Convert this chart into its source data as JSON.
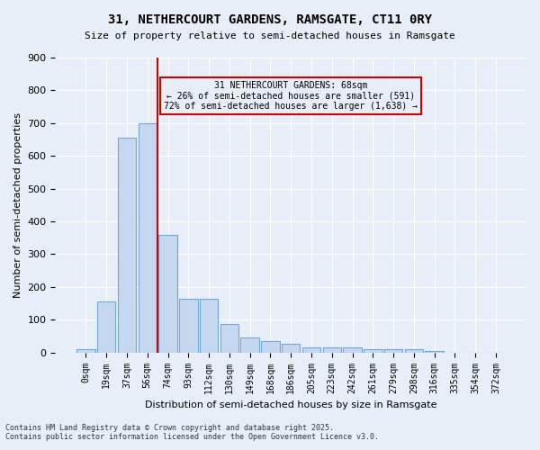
{
  "title1": "31, NETHERCOURT GARDENS, RAMSGATE, CT11 0RY",
  "title2": "Size of property relative to semi-detached houses in Ramsgate",
  "xlabel": "Distribution of semi-detached houses by size in Ramsgate",
  "ylabel": "Number of semi-detached properties",
  "categories": [
    "0sqm",
    "19sqm",
    "37sqm",
    "56sqm",
    "74sqm",
    "93sqm",
    "112sqm",
    "130sqm",
    "149sqm",
    "168sqm",
    "186sqm",
    "205sqm",
    "223sqm",
    "242sqm",
    "261sqm",
    "279sqm",
    "298sqm",
    "316sqm",
    "335sqm",
    "354sqm",
    "372sqm"
  ],
  "values": [
    10,
    155,
    655,
    700,
    360,
    165,
    165,
    87,
    47,
    35,
    27,
    15,
    15,
    15,
    10,
    10,
    10,
    5,
    0,
    0,
    0
  ],
  "bar_color": "#c5d8f0",
  "bar_edge_color": "#6fa8d8",
  "vline_x": 3.5,
  "vline_color": "#cc0000",
  "annotation_text": "31 NETHERCOURT GARDENS: 68sqm\n← 26% of semi-detached houses are smaller (591)\n72% of semi-detached houses are larger (1,638) →",
  "annotation_box_color": "#cc0000",
  "background_color": "#e8eef8",
  "grid_color": "#ffffff",
  "footer": "Contains HM Land Registry data © Crown copyright and database right 2025.\nContains public sector information licensed under the Open Government Licence v3.0.",
  "ylim": [
    0,
    900
  ],
  "yticks": [
    0,
    100,
    200,
    300,
    400,
    500,
    600,
    700,
    800,
    900
  ]
}
